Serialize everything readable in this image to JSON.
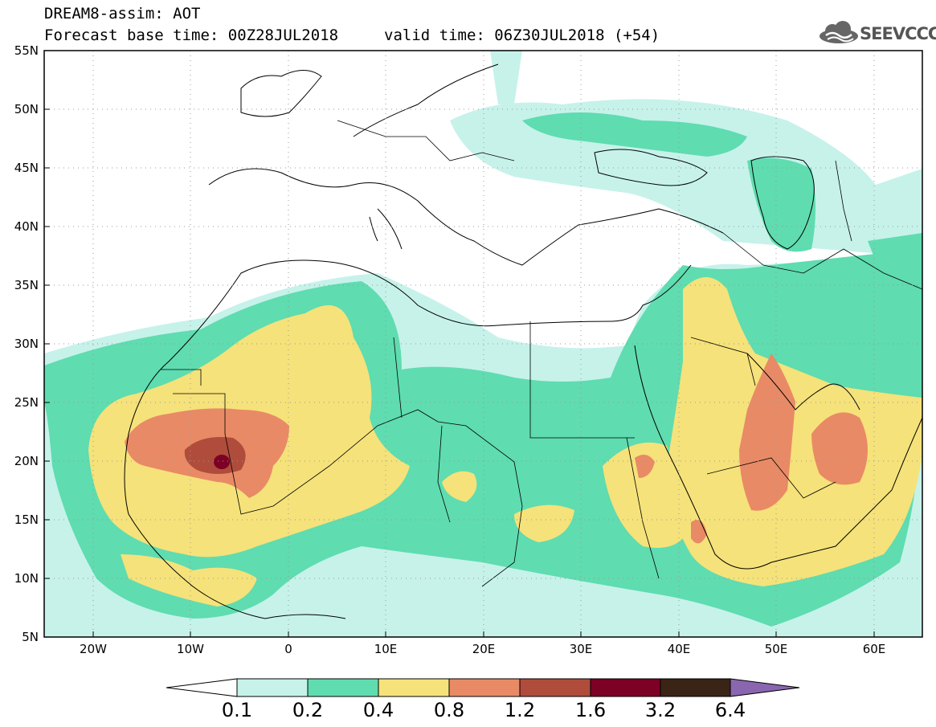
{
  "header": {
    "title_line1": "DREAM8-assim: AOT",
    "title_line2": "Forecast base time: 00Z28JUL2018",
    "valid_time": "valid time: 06Z30JUL2018 (+54)",
    "logo_text": "SEEVCCC"
  },
  "map": {
    "lat_labels": [
      "55N",
      "50N",
      "45N",
      "40N",
      "35N",
      "30N",
      "25N",
      "20N",
      "15N",
      "10N",
      "5N"
    ],
    "lon_labels": [
      "20W",
      "10W",
      "0",
      "10E",
      "20E",
      "30E",
      "40E",
      "50E",
      "60E"
    ],
    "lat_range": [
      5,
      55
    ],
    "lon_range": [
      -25,
      65
    ]
  },
  "colorbar": {
    "labels": [
      "0.1",
      "0.2",
      "0.4",
      "0.8",
      "1.2",
      "1.6",
      "3.2",
      "6.4"
    ],
    "colors": [
      "#ffffff",
      "#c6f2ea",
      "#5fdcb0",
      "#f5e27a",
      "#e98a66",
      "#b04c3b",
      "#7d0025",
      "#3a2415",
      "#8a66b0"
    ]
  }
}
